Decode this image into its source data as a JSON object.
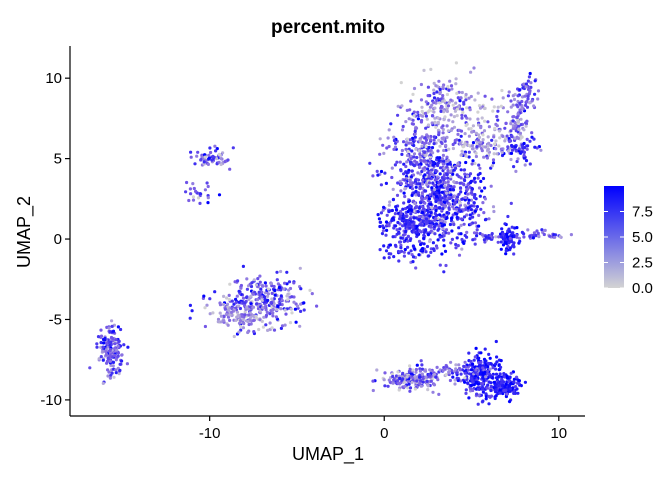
{
  "chart_data": {
    "type": "scatter",
    "title": "percent.mito",
    "xlabel": "UMAP_1",
    "ylabel": "UMAP_2",
    "xlim": [
      -18,
      11.5
    ],
    "ylim": [
      -11,
      12
    ],
    "xticks": [
      -10,
      0,
      10
    ],
    "xtick_labels": [
      "-10",
      "0",
      "10"
    ],
    "yticks": [
      -10,
      -5,
      0,
      5,
      10
    ],
    "ytick_labels": [
      "-10",
      "-5",
      "0",
      "5",
      "10"
    ],
    "grid": false,
    "color_scale": {
      "variable": "percent.mito",
      "low_color": "#d3d3d3",
      "high_color": "#0000ff",
      "min": 0,
      "max": 10,
      "ticks": [
        0,
        2.5,
        5,
        7.5
      ],
      "tick_labels": [
        "0.0",
        "2.5",
        "5.0",
        "7.5"
      ]
    },
    "legend_position": "right",
    "clusters": [
      {
        "cx": 3.2,
        "cy": 2.5,
        "sx": 1.4,
        "sy": 1.5,
        "n": 700,
        "mean": 6.5,
        "spread": 2.5
      },
      {
        "cx": 1.6,
        "cy": 1.0,
        "sx": 0.8,
        "sy": 0.6,
        "n": 180,
        "mean": 8.0,
        "spread": 1.5
      },
      {
        "cx": 2.0,
        "cy": 5.5,
        "sx": 1.0,
        "sy": 1.2,
        "n": 220,
        "mean": 5.5,
        "spread": 2.5
      },
      {
        "cx": 4.0,
        "cy": 7.5,
        "sx": 1.5,
        "sy": 1.2,
        "n": 200,
        "mean": 2.5,
        "spread": 2.5
      },
      {
        "cx": 3.5,
        "cy": 8.8,
        "sx": 0.6,
        "sy": 0.6,
        "n": 60,
        "mean": 4.0,
        "spread": 2.5
      },
      {
        "cx": 7.6,
        "cy": 7.0,
        "sx": 0.5,
        "sy": 1.2,
        "n": 120,
        "mean": 4.0,
        "spread": 2.5
      },
      {
        "cx": 8.2,
        "cy": 9.2,
        "sx": 0.3,
        "sy": 0.6,
        "n": 40,
        "mean": 6.0,
        "spread": 2.0
      },
      {
        "cx": 7.8,
        "cy": 5.6,
        "sx": 0.5,
        "sy": 0.25,
        "n": 40,
        "mean": 7.5,
        "spread": 1.5
      },
      {
        "cx": 5.8,
        "cy": 5.8,
        "sx": 0.9,
        "sy": 0.6,
        "n": 60,
        "mean": 2.0,
        "spread": 2.0
      },
      {
        "cx": 1.5,
        "cy": -0.8,
        "sx": 0.8,
        "sy": 0.4,
        "n": 50,
        "mean": 7.5,
        "spread": 1.8
      },
      {
        "cx": 7.2,
        "cy": 0.0,
        "sx": 0.35,
        "sy": 0.45,
        "n": 70,
        "mean": 8.5,
        "spread": 1.2
      },
      {
        "cx": 6.0,
        "cy": 0.1,
        "sx": 0.7,
        "sy": 0.15,
        "n": 30,
        "mean": 6.5,
        "spread": 2.0
      },
      {
        "cx": 8.8,
        "cy": 0.2,
        "sx": 0.8,
        "sy": 0.15,
        "n": 35,
        "mean": 5.0,
        "spread": 2.5
      },
      {
        "cx": -9.8,
        "cy": 5.0,
        "sx": 0.6,
        "sy": 0.3,
        "n": 60,
        "mean": 5.0,
        "spread": 2.5
      },
      {
        "cx": -10.5,
        "cy": 2.8,
        "sx": 0.4,
        "sy": 0.3,
        "n": 25,
        "mean": 5.0,
        "spread": 2.5
      },
      {
        "cx": -7.0,
        "cy": -3.8,
        "sx": 1.2,
        "sy": 0.7,
        "n": 280,
        "mean": 5.0,
        "spread": 2.8
      },
      {
        "cx": -8.3,
        "cy": -4.8,
        "sx": 0.8,
        "sy": 0.4,
        "n": 100,
        "mean": 2.5,
        "spread": 2.0
      },
      {
        "cx": -15.6,
        "cy": -6.9,
        "sx": 0.35,
        "sy": 0.75,
        "n": 170,
        "mean": 5.0,
        "spread": 2.5
      },
      {
        "cx": 5.6,
        "cy": -8.5,
        "sx": 0.55,
        "sy": 0.7,
        "n": 250,
        "mean": 8.0,
        "spread": 1.8
      },
      {
        "cx": 7.0,
        "cy": -9.1,
        "sx": 0.45,
        "sy": 0.4,
        "n": 120,
        "mean": 8.5,
        "spread": 1.5
      },
      {
        "cx": 1.6,
        "cy": -8.7,
        "sx": 0.8,
        "sy": 0.35,
        "n": 170,
        "mean": 4.5,
        "spread": 2.5
      },
      {
        "cx": 3.5,
        "cy": -8.3,
        "sx": 1.0,
        "sy": 0.3,
        "n": 70,
        "mean": 5.0,
        "spread": 2.5
      }
    ]
  }
}
